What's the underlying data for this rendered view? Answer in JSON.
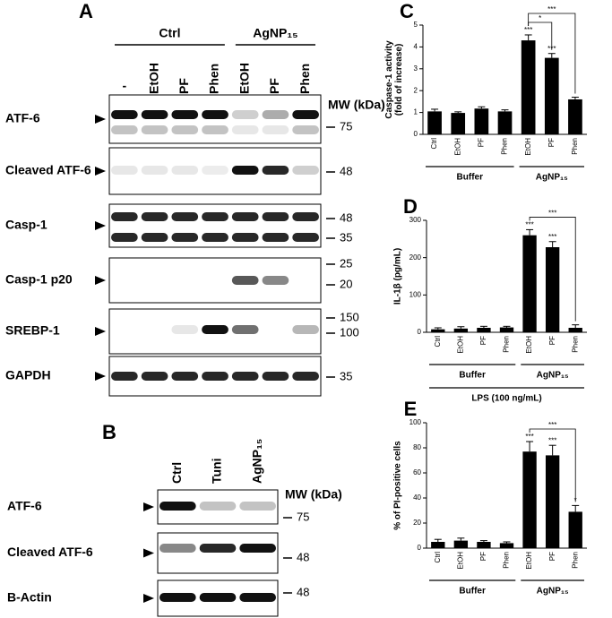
{
  "panel_a": {
    "letter": "A",
    "groups": [
      {
        "label": "Ctrl"
      },
      {
        "label": "AgNP₁₅"
      }
    ],
    "lanes": [
      "-",
      "EtOH",
      "PF",
      "Phen",
      "EtOH",
      "PF",
      "Phen"
    ],
    "mw_title": "MW (kDa)",
    "rows": [
      {
        "label": "ATF-6",
        "mw": [
          "75"
        ]
      },
      {
        "label": "Cleaved ATF-6",
        "mw": [
          "48"
        ]
      },
      {
        "label": "Casp-1",
        "mw": [
          "48",
          "35"
        ]
      },
      {
        "label": "Casp-1 p20",
        "mw": [
          "25",
          "20"
        ]
      },
      {
        "label": "SREBP-1",
        "mw": [
          "150",
          "100"
        ]
      },
      {
        "label": "GAPDH",
        "mw": [
          "35"
        ]
      }
    ]
  },
  "panel_b": {
    "letter": "B",
    "lanes": [
      "Ctrl",
      "Tuni",
      "AgNP₁₅"
    ],
    "mw_title": "MW (kDa)",
    "rows": [
      {
        "label": "ATF-6",
        "mw": [
          "75"
        ]
      },
      {
        "label": "Cleaved ATF-6",
        "mw": [
          "48"
        ]
      },
      {
        "label": "B-Actin",
        "mw": [
          "48"
        ]
      }
    ]
  },
  "chart_data": [
    {
      "type": "bar",
      "panel": "C",
      "ylabel": [
        "Caspase-1 activity",
        "(fold of increase)"
      ],
      "categories": [
        "Ctrl",
        "EtOH",
        "PF",
        "Phen",
        "EtOH",
        "PF",
        "Phen"
      ],
      "values": [
        1.05,
        0.98,
        1.18,
        1.05,
        4.3,
        3.5,
        1.6
      ],
      "errors": [
        0.1,
        0.05,
        0.08,
        0.07,
        0.25,
        0.2,
        0.1
      ],
      "significance": [
        null,
        null,
        null,
        null,
        "***",
        "***",
        null
      ],
      "comparisons": [
        {
          "pair": [
            4,
            5
          ],
          "label": "*"
        },
        {
          "pair": [
            4,
            6
          ],
          "label": "***"
        }
      ],
      "groups": [
        {
          "label": "Buffer",
          "span": [
            0,
            3
          ]
        },
        {
          "label": "AgNP₁₅",
          "span": [
            4,
            6
          ]
        }
      ],
      "color": "#000000",
      "ylim": [
        0,
        5
      ],
      "yticks": [
        0,
        1,
        2,
        3,
        4,
        5
      ]
    },
    {
      "type": "bar",
      "panel": "D",
      "ylabel": [
        "IL-1β (pg/mL)"
      ],
      "categories": [
        "Ctrl",
        "EtOH",
        "PF",
        "Phen",
        "EtOH",
        "PF",
        "Phen"
      ],
      "values": [
        8,
        10,
        12,
        13,
        260,
        228,
        12
      ],
      "errors": [
        4,
        5,
        4,
        3,
        15,
        15,
        8
      ],
      "significance": [
        null,
        null,
        null,
        null,
        "***",
        "***",
        null
      ],
      "comparisons": [
        {
          "pair": [
            4,
            6
          ],
          "label": "***"
        }
      ],
      "groups": [
        {
          "label": "Buffer",
          "span": [
            0,
            3
          ]
        },
        {
          "label": "AgNP₁₅",
          "span": [
            4,
            6
          ]
        }
      ],
      "footer": "LPS (100 ng/mL)",
      "color": "#000000",
      "ylim": [
        0,
        300
      ],
      "yticks": [
        0,
        100,
        200,
        300
      ]
    },
    {
      "type": "bar",
      "panel": "E",
      "ylabel": [
        "% of PI-positive cells"
      ],
      "categories": [
        "Ctrl",
        "EtOH",
        "PF",
        "Phen",
        "EtOH",
        "PF",
        "Phen"
      ],
      "values": [
        5,
        6,
        5,
        4,
        77,
        74,
        29
      ],
      "errors": [
        2,
        2,
        1,
        1,
        8,
        8,
        5
      ],
      "significance": [
        null,
        null,
        null,
        null,
        "***",
        "***",
        "*"
      ],
      "comparisons": [
        {
          "pair": [
            4,
            6
          ],
          "label": "***"
        }
      ],
      "groups": [
        {
          "label": "Buffer",
          "span": [
            0,
            3
          ]
        },
        {
          "label": "AgNP₁₅",
          "span": [
            4,
            6
          ]
        }
      ],
      "color": "#000000",
      "ylim": [
        0,
        100
      ],
      "yticks": [
        0,
        20,
        40,
        60,
        80,
        100
      ]
    }
  ]
}
